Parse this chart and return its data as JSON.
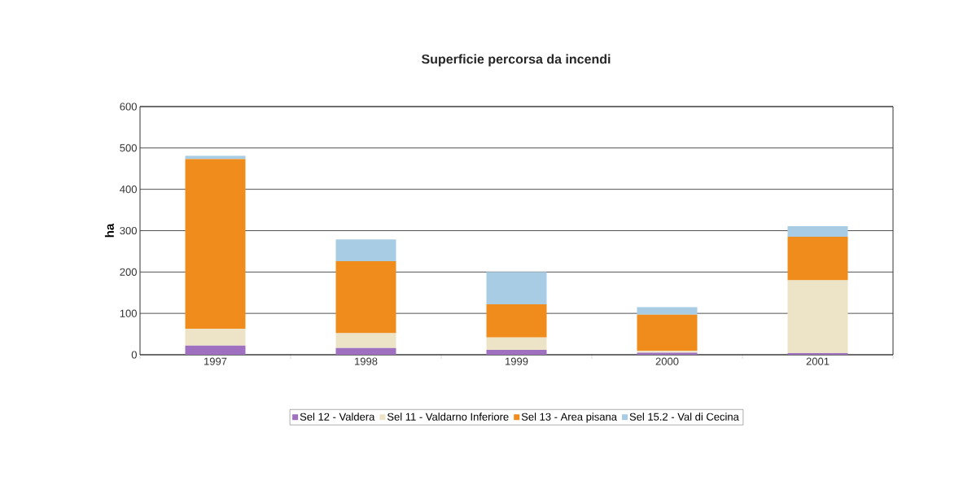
{
  "chart_data": {
    "type": "bar",
    "stacked": true,
    "title": "Superficie percorsa da incendi",
    "ylabel": "ha",
    "categories": [
      "1997",
      "1998",
      "1999",
      "2000",
      "2001"
    ],
    "series": [
      {
        "name": "Sel 12 - Valdera",
        "color": "#a070c0",
        "values": [
          22,
          16,
          12,
          5,
          4
        ]
      },
      {
        "name": "Sel 11 - Valdarno Inferiore",
        "color": "#ede4c8",
        "values": [
          41,
          36,
          30,
          5,
          176
        ]
      },
      {
        "name": "Sel 13 - Area pisana",
        "color": "#f08c1c",
        "values": [
          410,
          174,
          80,
          87,
          105
        ]
      },
      {
        "name": "Sel 15.2 - Val di Cecina",
        "color": "#a8cce4",
        "values": [
          8,
          53,
          78,
          18,
          26
        ]
      }
    ],
    "ylim": [
      0,
      600
    ],
    "yticks": [
      0,
      100,
      200,
      300,
      400,
      500,
      600
    ],
    "grid": "y",
    "legend": "bottom"
  }
}
